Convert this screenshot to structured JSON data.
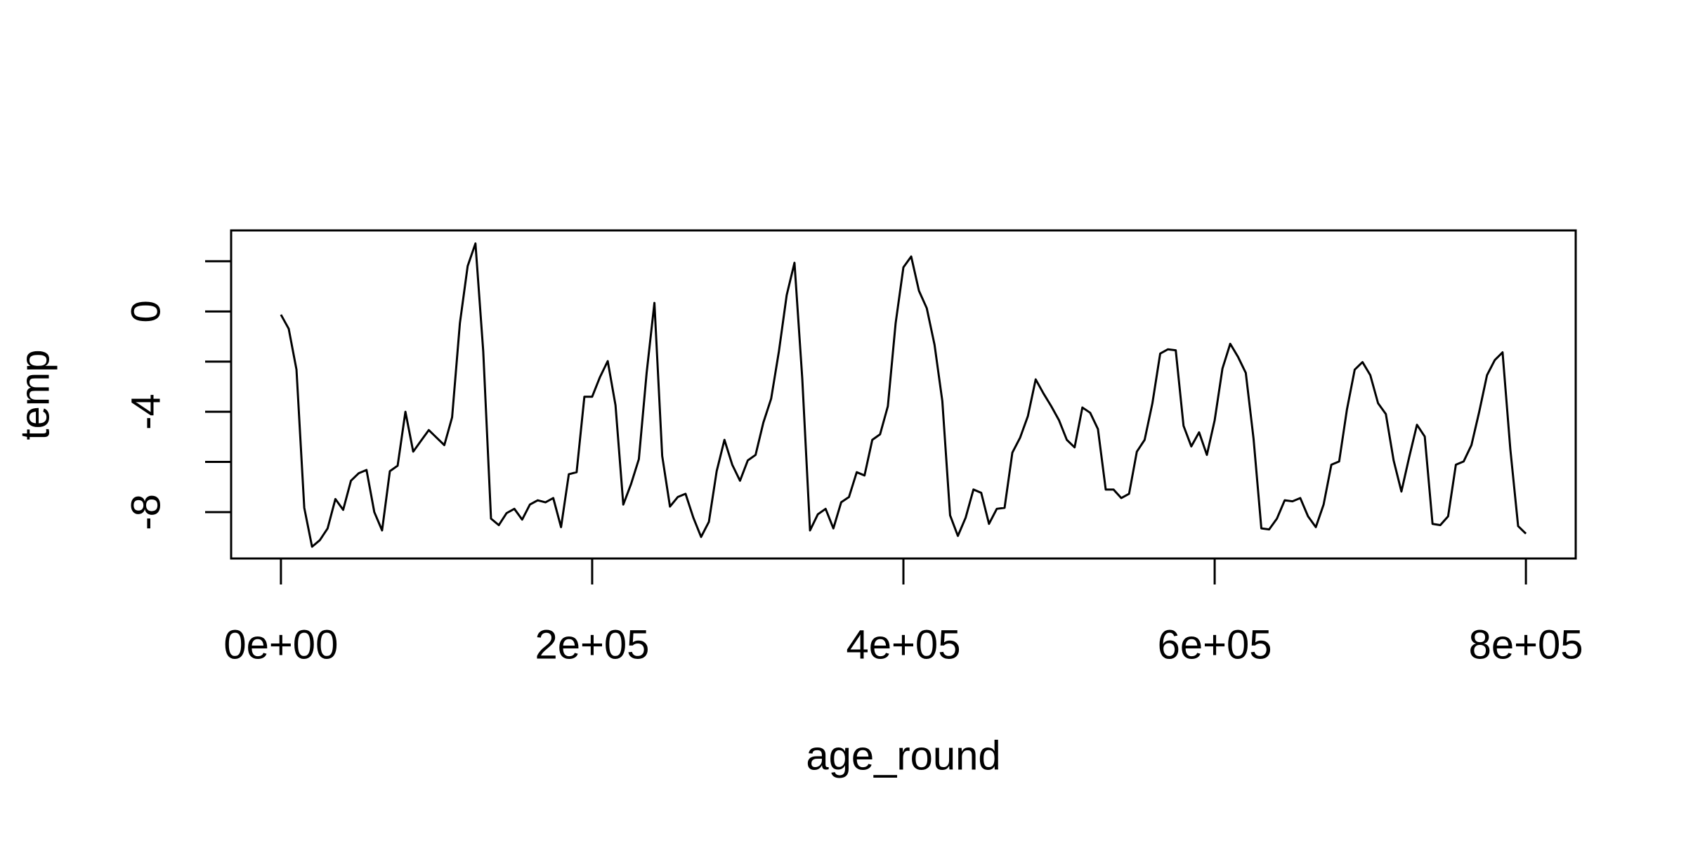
{
  "chart_data": {
    "type": "line",
    "xlabel": "age_round",
    "ylabel": "temp",
    "x": [
      0,
      5000,
      10000,
      15000,
      20000,
      25000,
      30000,
      35000,
      40000,
      45000,
      50000,
      55000,
      60000,
      65000,
      70000,
      75000,
      80000,
      85000,
      90000,
      95000,
      100000,
      105000,
      110000,
      115000,
      120000,
      125000,
      130000,
      135000,
      140000,
      145000,
      150000,
      155000,
      160000,
      165000,
      170000,
      175000,
      180000,
      185000,
      190000,
      195000,
      200000,
      205000,
      210000,
      215000,
      220000,
      225000,
      230000,
      235000,
      240000,
      245000,
      250000,
      255000,
      260000,
      265000,
      270000,
      275000,
      280000,
      285000,
      290000,
      295000,
      300000,
      305000,
      310000,
      315000,
      320000,
      325000,
      330000,
      335000,
      340000,
      345000,
      350000,
      355000,
      360000,
      365000,
      370000,
      375000,
      380000,
      385000,
      390000,
      395000,
      400000,
      405000,
      410000,
      415000,
      420000,
      425000,
      430000,
      435000,
      440000,
      445000,
      450000,
      455000,
      460000,
      465000,
      470000,
      475000,
      480000,
      485000,
      490000,
      495000,
      500000,
      505000,
      510000,
      515000,
      520000,
      525000,
      530000,
      535000,
      540000,
      545000,
      550000,
      555000,
      560000,
      565000,
      570000,
      575000,
      580000,
      585000,
      590000,
      595000,
      600000,
      605000,
      610000,
      615000,
      620000,
      625000,
      630000,
      635000,
      640000,
      645000,
      650000,
      655000,
      660000,
      665000,
      670000,
      675000,
      680000,
      685000,
      690000,
      695000,
      700000,
      705000,
      710000,
      715000,
      720000,
      725000,
      730000,
      735000,
      740000,
      745000,
      750000,
      755000,
      760000,
      765000,
      770000,
      775000,
      780000,
      785000,
      790000,
      795000,
      800000
    ],
    "series": [
      {
        "name": "temp",
        "color": "#000000",
        "values": [
          -0.13,
          -0.69,
          -2.32,
          -7.83,
          -9.38,
          -9.12,
          -8.65,
          -7.48,
          -7.91,
          -6.75,
          -6.45,
          -6.32,
          -8.0,
          -8.73,
          -6.37,
          -6.15,
          -4.0,
          -5.59,
          -5.16,
          -4.73,
          -5.03,
          -5.33,
          -4.22,
          -0.47,
          1.81,
          2.71,
          -1.59,
          -8.26,
          -8.52,
          -8.04,
          -7.87,
          -8.3,
          -7.7,
          -7.53,
          -7.61,
          -7.44,
          -8.6,
          -6.49,
          -6.41,
          -3.4,
          -3.4,
          -2.62,
          -1.98,
          -3.74,
          -7.7,
          -6.88,
          -5.89,
          -2.45,
          0.34,
          -5.76,
          -7.78,
          -7.4,
          -7.27,
          -8.22,
          -8.99,
          -8.39,
          -6.37,
          -5.12,
          -6.11,
          -6.75,
          -5.94,
          -5.72,
          -4.43,
          -3.48,
          -1.59,
          0.65,
          1.94,
          -2.67,
          -8.73,
          -8.09,
          -7.87,
          -8.65,
          -7.61,
          -7.4,
          -6.41,
          -6.54,
          -5.12,
          -4.9,
          -3.78,
          -0.47,
          1.76,
          2.19,
          0.82,
          0.13,
          -1.33,
          -3.57,
          -8.13,
          -8.95,
          -8.22,
          -7.1,
          -7.23,
          -8.47,
          -7.87,
          -7.83,
          -5.63,
          -5.03,
          -4.17,
          -2.71,
          -3.27,
          -3.78,
          -4.34,
          -5.12,
          -5.42,
          -3.83,
          -4.04,
          -4.69,
          -7.1,
          -7.1,
          -7.44,
          -7.27,
          -5.59,
          -5.12,
          -3.66,
          -1.68,
          -1.51,
          -1.55,
          -4.56,
          -5.38,
          -4.82,
          -5.72,
          -4.34,
          -2.28,
          -1.29,
          -1.81,
          -2.45,
          -5.08,
          -8.65,
          -8.69,
          -8.26,
          -7.53,
          -7.57,
          -7.44,
          -8.17,
          -8.6,
          -7.7,
          -6.11,
          -5.98,
          -3.91,
          -2.32,
          -2.02,
          -2.54,
          -3.66,
          -4.09,
          -5.94,
          -7.18,
          -5.81,
          -4.52,
          -4.99,
          -8.47,
          -8.52,
          -8.17,
          -6.11,
          -5.98,
          -5.33,
          -4.0,
          -2.54,
          -1.94,
          -1.63,
          -5.5,
          -8.56,
          -8.86
        ]
      }
    ],
    "xlim": [
      -32000,
      832000
    ],
    "ylim": [
      -9.85,
      3.23
    ],
    "xticks": [
      {
        "value": 0,
        "label": "0e+00"
      },
      {
        "value": 200000,
        "label": "2e+05"
      },
      {
        "value": 400000,
        "label": "4e+05"
      },
      {
        "value": 600000,
        "label": "6e+05"
      },
      {
        "value": 800000,
        "label": "8e+05"
      }
    ],
    "yticks": [
      {
        "value": -8,
        "label": "-8"
      },
      {
        "value": -6,
        "label": null
      },
      {
        "value": -4,
        "label": "-4"
      },
      {
        "value": -2,
        "label": null
      },
      {
        "value": 0,
        "label": "0"
      },
      {
        "value": 2,
        "label": null
      }
    ]
  }
}
